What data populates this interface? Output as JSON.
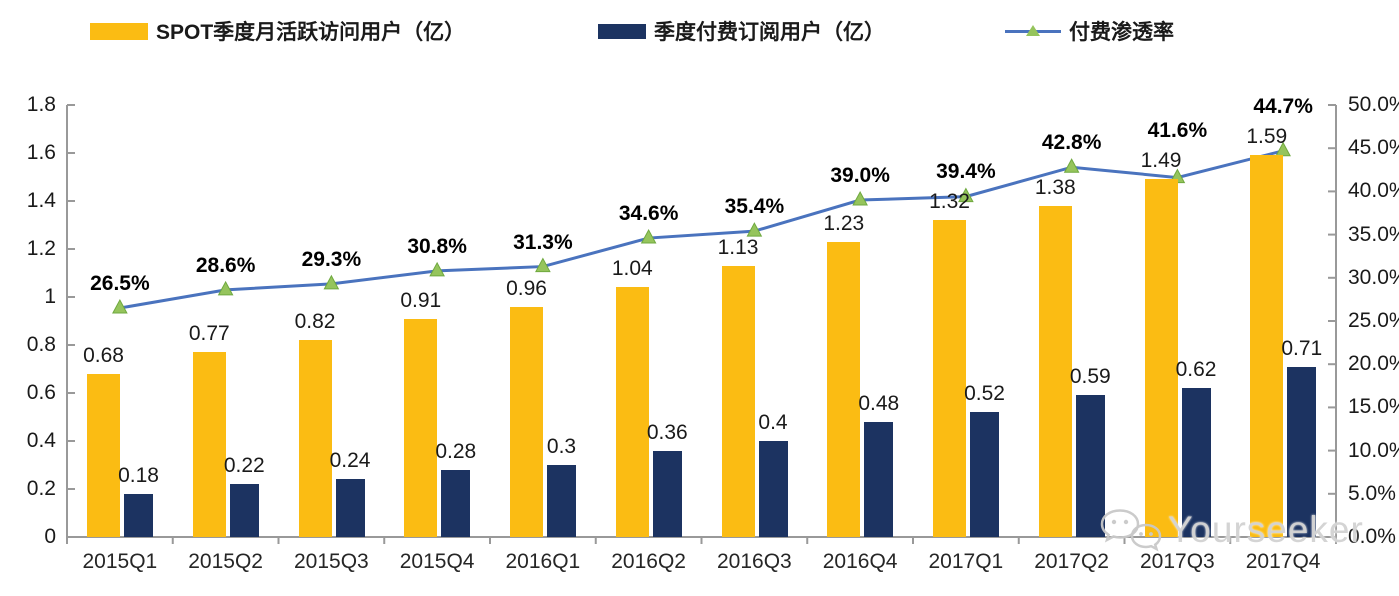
{
  "legend": {
    "items": [
      {
        "label": "SPOT季度月活跃访问用户（亿）",
        "swatch": "bar",
        "color": "#FBBC13"
      },
      {
        "label": "季度付费订阅用户（亿）",
        "swatch": "bar",
        "color": "#1C3361"
      },
      {
        "label": "付费渗透率",
        "swatch": "line-triangle-marker",
        "color": "#4A73BE",
        "marker_color": "#95C45C"
      }
    ]
  },
  "watermark": {
    "text": "Yourseeker",
    "icon": "wechat-icon"
  },
  "colors": {
    "mau_bar": "#FBBC13",
    "paid_bar": "#1C3361",
    "line": "#4A73BE",
    "marker_fill": "#95C45C",
    "marker_stroke": "#6FA93F",
    "axis": "#999999",
    "text": "#1a1a1a"
  },
  "chart_data": {
    "type": "bar",
    "subtype": "grouped-bars-with-line-overlay",
    "title": "",
    "xlabel": "",
    "ylabel_left": "",
    "ylabel_right": "",
    "grid": false,
    "legend_position": "top",
    "categories": [
      "2015Q1",
      "2015Q2",
      "2015Q3",
      "2015Q4",
      "2016Q1",
      "2016Q2",
      "2016Q3",
      "2016Q4",
      "2017Q1",
      "2017Q2",
      "2017Q3",
      "2017Q4"
    ],
    "series": [
      {
        "name": "SPOT季度月活跃访问用户（亿）",
        "type": "bar",
        "axis": "left",
        "color": "#FBBC13",
        "values": [
          0.68,
          0.77,
          0.82,
          0.91,
          0.96,
          1.04,
          1.13,
          1.23,
          1.32,
          1.38,
          1.49,
          1.59
        ],
        "labels": [
          "0.68",
          "0.77",
          "0.82",
          "0.91",
          "0.96",
          "1.04",
          "1.13",
          "1.23",
          "1.32",
          "1.38",
          "1.49",
          "1.59"
        ]
      },
      {
        "name": "季度付费订阅用户（亿）",
        "type": "bar",
        "axis": "left",
        "color": "#1C3361",
        "values": [
          0.18,
          0.22,
          0.24,
          0.28,
          0.3,
          0.36,
          0.4,
          0.48,
          0.52,
          0.59,
          0.62,
          0.71
        ],
        "labels": [
          "0.18",
          "0.22",
          "0.24",
          "0.28",
          "0.3",
          "0.36",
          "0.4",
          "0.48",
          "0.52",
          "0.59",
          "0.62",
          "0.71"
        ]
      },
      {
        "name": "付费渗透率",
        "type": "line",
        "axis": "right",
        "color": "#4A73BE",
        "marker": "triangle",
        "marker_color": "#95C45C",
        "values": [
          26.5,
          28.6,
          29.3,
          30.8,
          31.3,
          34.6,
          35.4,
          39.0,
          39.4,
          42.8,
          41.6,
          44.7
        ],
        "labels": [
          "26.5%",
          "28.6%",
          "29.3%",
          "30.8%",
          "31.3%",
          "34.6%",
          "35.4%",
          "39.0%",
          "39.4%",
          "42.8%",
          "41.6%",
          "44.7%"
        ]
      }
    ],
    "left_axis": {
      "min": 0,
      "max": 1.8,
      "ticks": [
        "0",
        "0.2",
        "0.4",
        "0.6",
        "0.8",
        "1",
        "1.2",
        "1.4",
        "1.6",
        "1.8"
      ]
    },
    "right_axis": {
      "min": 0,
      "max": 50,
      "ticks": [
        "0.0%",
        "5.0%",
        "10.0%",
        "15.0%",
        "20.0%",
        "25.0%",
        "30.0%",
        "35.0%",
        "40.0%",
        "45.0%",
        "50.0%"
      ]
    }
  }
}
